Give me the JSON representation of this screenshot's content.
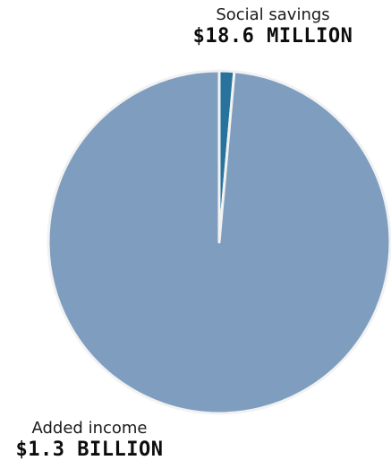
{
  "chart_data": {
    "type": "pie",
    "title": "",
    "slices": [
      {
        "name": "Social savings",
        "value_label": "$18.6 MILLION",
        "value": 18.6,
        "unit": "million USD",
        "color": "#27739d"
      },
      {
        "name": "Added income",
        "value_label": "$1.3 BILLION",
        "value": 1300,
        "unit": "million USD",
        "color": "#7f9ebf"
      }
    ],
    "separator_color": "#f2f2f2",
    "start_angle_deg": 0,
    "direction": "clockwise"
  }
}
